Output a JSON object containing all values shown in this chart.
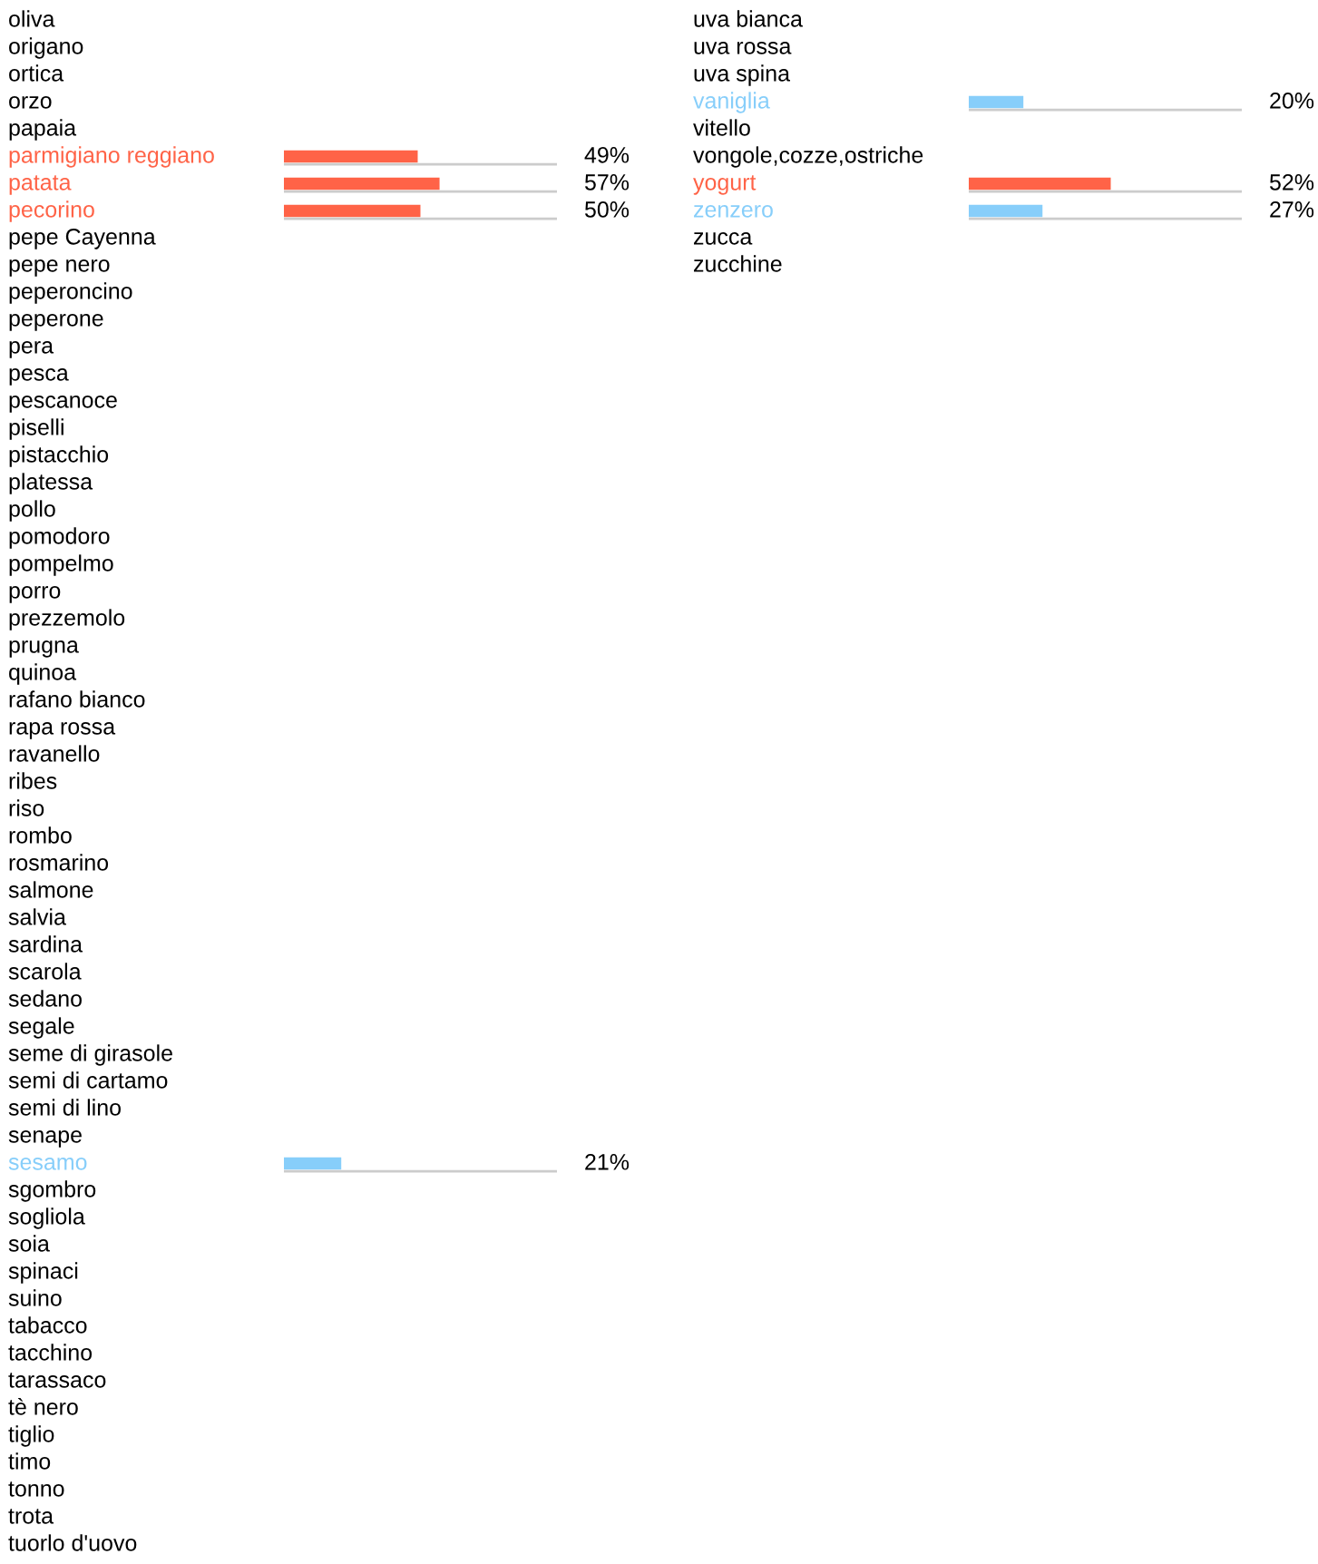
{
  "chart_data": [
    {
      "type": "bar",
      "orientation": "horizontal",
      "xlim": [
        0,
        100
      ],
      "tick_labels": "y",
      "categories": [
        "oliva",
        "origano",
        "ortica",
        "orzo",
        "papaia",
        "parmigiano reggiano",
        "patata",
        "pecorino",
        "pepe Cayenna",
        "pepe nero",
        "peperoncino",
        "peperone",
        "pera",
        "pesca",
        "pescanoce",
        "piselli",
        "pistacchio",
        "platessa",
        "pollo",
        "pomodoro",
        "pompelmo",
        "porro",
        "prezzemolo",
        "prugna",
        "quinoa",
        "rafano bianco",
        "rapa rossa",
        "ravanello",
        "ribes",
        "riso",
        "rombo",
        "rosmarino",
        "salmone",
        "salvia",
        "sardina",
        "scarola",
        "sedano",
        "segale",
        "seme di girasole",
        "semi di cartamo",
        "semi di lino",
        "senape",
        "sesamo",
        "sgombro",
        "sogliola",
        "soia",
        "spinaci",
        "suino",
        "tabacco",
        "tacchino",
        "tarassaco",
        "tè nero",
        "tiglio",
        "timo",
        "tonno",
        "trota",
        "tuorlo d'uovo"
      ],
      "values": [
        null,
        null,
        null,
        null,
        null,
        49,
        57,
        50,
        null,
        null,
        null,
        null,
        null,
        null,
        null,
        null,
        null,
        null,
        null,
        null,
        null,
        null,
        null,
        null,
        null,
        null,
        null,
        null,
        null,
        null,
        null,
        null,
        null,
        null,
        null,
        null,
        null,
        null,
        null,
        null,
        null,
        null,
        21,
        null,
        null,
        null,
        null,
        null,
        null,
        null,
        null,
        null,
        null,
        null,
        null,
        null,
        null
      ],
      "colors": [
        null,
        null,
        null,
        null,
        null,
        "#ff6347",
        "#ff6347",
        "#ff6347",
        null,
        null,
        null,
        null,
        null,
        null,
        null,
        null,
        null,
        null,
        null,
        null,
        null,
        null,
        null,
        null,
        null,
        null,
        null,
        null,
        null,
        null,
        null,
        null,
        null,
        null,
        null,
        null,
        null,
        null,
        null,
        null,
        null,
        null,
        "#87cefa",
        null,
        null,
        null,
        null,
        null,
        null,
        null,
        null,
        null,
        null,
        null,
        null,
        null,
        null
      ],
      "value_labels": [
        null,
        null,
        null,
        null,
        null,
        "49%",
        "57%",
        "50%",
        null,
        null,
        null,
        null,
        null,
        null,
        null,
        null,
        null,
        null,
        null,
        null,
        null,
        null,
        null,
        null,
        null,
        null,
        null,
        null,
        null,
        null,
        null,
        null,
        null,
        null,
        null,
        null,
        null,
        null,
        null,
        null,
        null,
        null,
        "21%",
        null,
        null,
        null,
        null,
        null,
        null,
        null,
        null,
        null,
        null,
        null,
        null,
        null,
        null
      ]
    },
    {
      "type": "bar",
      "orientation": "horizontal",
      "xlim": [
        0,
        100
      ],
      "tick_labels": "y",
      "categories": [
        "uva bianca",
        "uva rossa",
        "uva spina",
        "vaniglia",
        "vitello",
        "vongole,cozze,ostriche",
        "yogurt",
        "zenzero",
        "zucca",
        "zucchine"
      ],
      "values": [
        null,
        null,
        null,
        20,
        null,
        null,
        52,
        27,
        null,
        null
      ],
      "colors": [
        null,
        null,
        null,
        "#87cefa",
        null,
        null,
        "#ff6347",
        "#87cefa",
        null,
        null
      ],
      "value_labels": [
        null,
        null,
        null,
        "20%",
        null,
        null,
        "52%",
        "27%",
        null,
        null
      ]
    }
  ]
}
